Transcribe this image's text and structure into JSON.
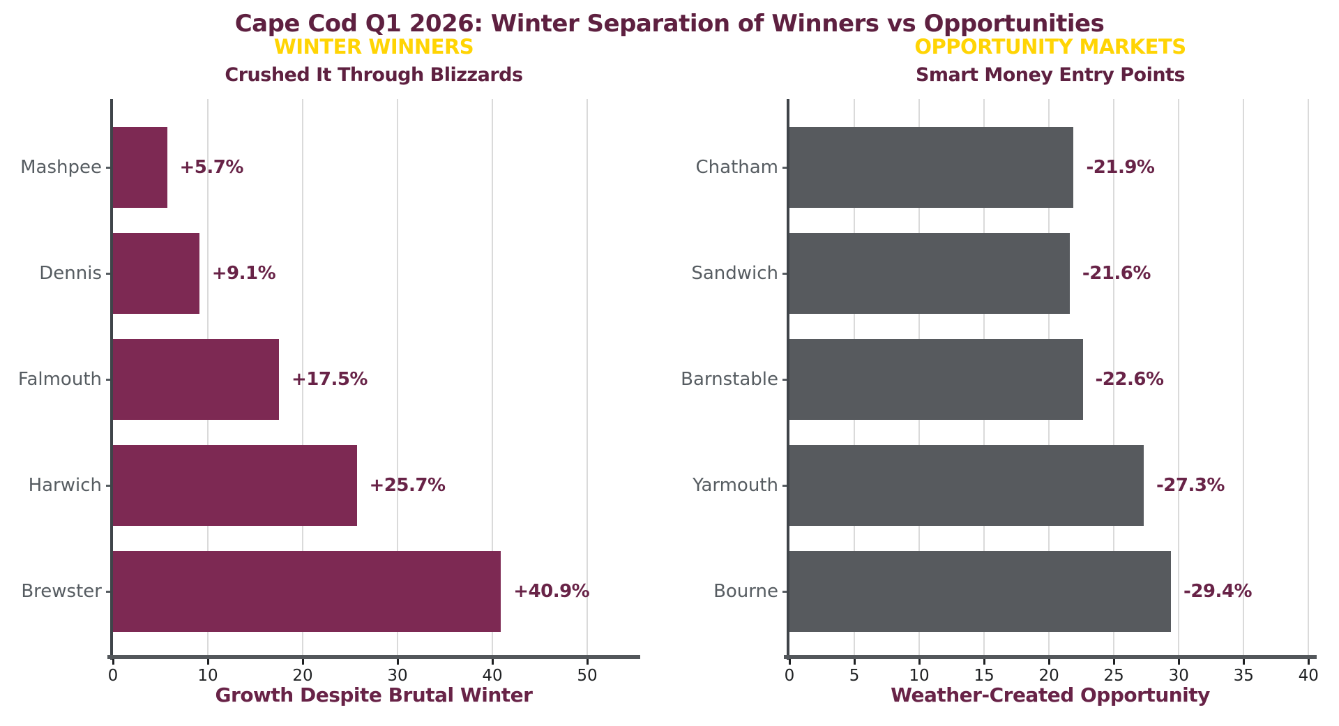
{
  "figure": {
    "title": "Cape Cod Q1 2026: Winter Separation of Winners vs Opportunities",
    "background": "#FFFFFF",
    "colors": {
      "title_maroon": "#5E2040",
      "value_maroon": "#682347",
      "banner_gold": "#FFD404",
      "winner_bar": "#7D2953",
      "opportunity_bar": "#575A5E",
      "category_label": "#565C61",
      "tick_label": "#1E2022",
      "gridline": "#DADADA",
      "left_spine": "#3F4449",
      "bottom_spine": "#53575B"
    }
  },
  "chart_data": [
    {
      "type": "bar",
      "orientation": "horizontal",
      "banner": "WINTER WINNERS",
      "title": "Crushed It Through Blizzards",
      "xlabel": "Growth Despite Brutal Winter",
      "categories": [
        "Mashpee",
        "Dennis",
        "Falmouth",
        "Harwich",
        "Brewster"
      ],
      "values": [
        5.7,
        9.1,
        17.5,
        25.7,
        40.9
      ],
      "signed_values": [
        5.7,
        9.1,
        17.5,
        25.7,
        40.9
      ],
      "value_labels": [
        "+5.7%",
        "+9.1%",
        "+17.5%",
        "+25.7%",
        "+40.9%"
      ],
      "bar_color": "#7D2953",
      "xlim": [
        0,
        55
      ],
      "xticks": [
        0,
        10,
        20,
        30,
        40,
        50
      ],
      "grid": true,
      "legend": "none"
    },
    {
      "type": "bar",
      "orientation": "horizontal",
      "banner": "OPPORTUNITY MARKETS",
      "title": "Smart Money Entry Points",
      "xlabel": "Weather-Created Opportunity",
      "categories": [
        "Chatham",
        "Sandwich",
        "Barnstable",
        "Yarmouth",
        "Bourne"
      ],
      "values": [
        21.9,
        21.6,
        22.6,
        27.3,
        29.4
      ],
      "signed_values": [
        -21.9,
        -21.6,
        -22.6,
        -27.3,
        -29.4
      ],
      "value_labels": [
        "-21.9%",
        "-21.6%",
        "-22.6%",
        "-27.3%",
        "-29.4%"
      ],
      "bar_color": "#575A5E",
      "xlim": [
        0,
        40.2
      ],
      "xticks": [
        0,
        5,
        10,
        15,
        20,
        25,
        30,
        35,
        40
      ],
      "grid": true,
      "legend": "none"
    }
  ]
}
